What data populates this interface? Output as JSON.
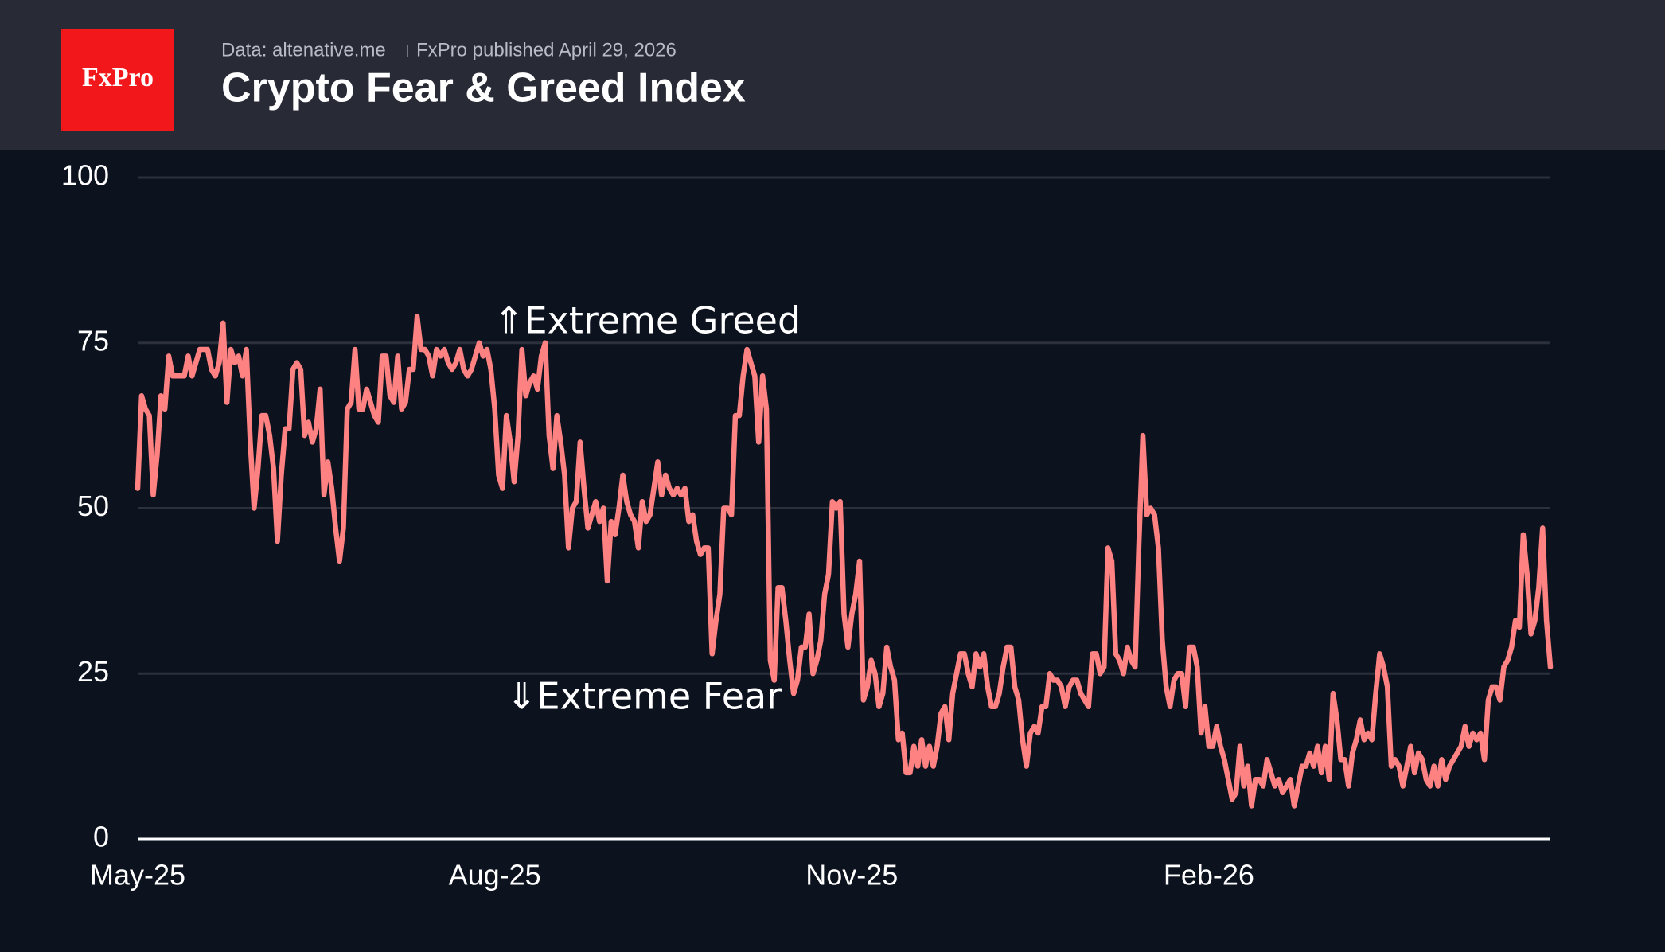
{
  "header": {
    "logo": "FxPro",
    "source": "Data: altenative.me",
    "published": "FxPro published April 29, 2026"
  },
  "chart_data": {
    "type": "line",
    "title": "Crypto Fear & Greed Index",
    "annotations": [
      "⇑Extreme Greed",
      "⇓Extreme Fear"
    ],
    "color": "#ff8282",
    "grid": true,
    "xlim": [
      0,
      364
    ],
    "xticks": [
      {
        "value": 0,
        "label": "May-25"
      },
      {
        "value": 92,
        "label": "Aug-25"
      },
      {
        "value": 184,
        "label": "Nov-25"
      },
      {
        "value": 276,
        "label": "Feb-26"
      }
    ],
    "ylim": [
      0,
      100
    ],
    "yticks": [
      0,
      25,
      50,
      75,
      100
    ],
    "values": [
      53,
      67,
      65,
      64,
      52,
      58,
      67,
      65,
      73,
      70,
      70,
      70,
      70,
      73,
      70,
      72,
      74,
      74,
      74,
      71,
      70,
      72,
      78,
      66,
      74,
      72,
      73,
      70,
      74,
      60,
      50,
      56,
      64,
      64,
      61,
      56,
      45,
      55,
      62,
      62,
      71,
      72,
      71,
      61,
      63,
      60,
      62,
      68,
      52,
      57,
      53,
      47,
      42,
      47,
      65,
      66,
      74,
      65,
      65,
      68,
      66,
      64,
      63,
      73,
      73,
      67,
      66,
      73,
      65,
      66,
      71,
      71,
      79,
      74,
      74,
      73,
      70,
      74,
      73,
      74,
      72,
      71,
      72,
      74,
      71,
      70,
      71,
      73,
      75,
      73,
      74,
      71,
      65,
      55,
      53,
      64,
      60,
      54,
      61,
      74,
      67,
      69,
      70,
      68,
      73,
      75,
      61,
      56,
      64,
      60,
      55,
      44,
      50,
      51,
      60,
      53,
      47,
      49,
      51,
      48,
      50,
      39,
      48,
      46,
      50,
      55,
      51,
      49,
      48,
      44,
      51,
      48,
      49,
      53,
      57,
      52,
      55,
      53,
      52,
      53,
      52,
      53,
      48,
      49,
      45,
      43,
      44,
      44,
      28,
      33,
      37,
      50,
      50,
      49,
      64,
      64,
      70,
      74,
      72,
      70,
      60,
      70,
      65,
      27,
      24,
      38,
      38,
      33,
      27,
      22,
      24,
      29,
      29,
      34,
      25,
      27,
      30,
      37,
      40,
      51,
      50,
      51,
      34,
      29,
      34,
      37,
      42,
      21,
      23,
      27,
      25,
      20,
      22,
      29,
      26,
      24,
      15,
      16,
      10,
      10,
      14,
      11,
      15,
      11,
      14,
      11,
      14,
      19,
      20,
      15,
      22,
      25,
      28,
      28,
      25,
      23,
      28,
      26,
      28,
      23,
      20,
      20,
      22,
      26,
      29,
      29,
      23,
      21,
      15,
      11,
      16,
      17,
      16,
      20,
      20,
      25,
      24,
      24,
      23,
      20,
      23,
      24,
      24,
      22,
      21,
      20,
      28,
      28,
      25,
      26,
      44,
      42,
      28,
      27,
      25,
      29,
      27,
      26,
      45,
      61,
      49,
      50,
      49,
      44,
      30,
      23,
      20,
      24,
      25,
      25,
      20,
      29,
      29,
      26,
      16,
      20,
      14,
      14,
      17,
      14,
      12,
      9,
      6,
      7,
      14,
      8,
      11,
      5,
      9,
      9,
      8,
      12,
      10,
      8,
      9,
      7,
      8,
      9,
      5,
      8,
      11,
      11,
      13,
      11,
      14,
      10,
      14,
      9,
      22,
      18,
      12,
      12,
      8,
      13,
      15,
      18,
      15,
      16,
      15,
      22,
      28,
      26,
      23,
      11,
      12,
      11,
      8,
      11,
      14,
      10,
      13,
      12,
      9,
      8,
      11,
      8,
      12,
      9,
      11,
      12,
      13,
      14,
      17,
      14,
      16,
      15,
      16,
      12,
      21,
      23,
      23,
      21,
      26,
      27,
      29,
      33,
      32,
      46,
      40,
      31,
      33,
      38,
      47,
      33,
      26
    ]
  }
}
